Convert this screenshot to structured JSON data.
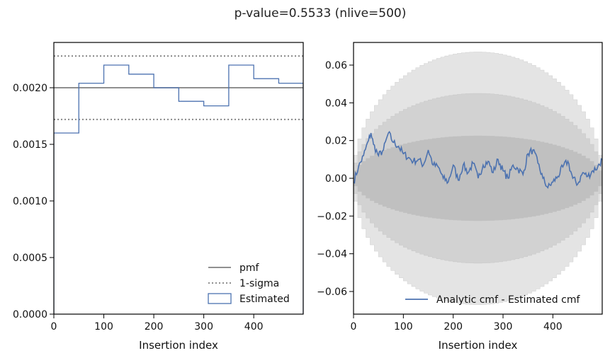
{
  "figure": {
    "suptitle": "p-value=0.5533 (nlive=500)"
  },
  "chart_data": [
    {
      "type": "step",
      "xlabel": "Insertion index",
      "ylabel": "",
      "xlim": [
        0,
        499
      ],
      "ylim": [
        0,
        0.0024
      ],
      "xticks": [
        0,
        100,
        200,
        300,
        400
      ],
      "yticks": [
        0,
        0.0005,
        0.001,
        0.0015,
        0.002
      ],
      "ytick_labels": [
        "0.0000",
        "0.0005",
        "0.0010",
        "0.0015",
        "0.0020"
      ],
      "legend_position": "lower right",
      "grid": false,
      "series": [
        {
          "name": "pmf",
          "kind": "hline",
          "y": 0.002,
          "style": "solid",
          "color": "#808080"
        },
        {
          "name": "1-sigma",
          "kind": "hlines",
          "y": [
            0.00172,
            0.00228
          ],
          "style": "dotted",
          "color": "#808080"
        },
        {
          "name": "Estimated",
          "kind": "hist",
          "color": "#4c72b0",
          "bin_edges": [
            0,
            50,
            100,
            150,
            200,
            250,
            300,
            350,
            400,
            450,
            499
          ],
          "values": [
            0.0016,
            0.00204,
            0.0022,
            0.00212,
            0.002,
            0.00188,
            0.00184,
            0.0022,
            0.00208,
            0.00204
          ]
        }
      ]
    },
    {
      "type": "line",
      "xlabel": "Insertion index",
      "ylabel": "",
      "xlim": [
        0,
        499
      ],
      "ylim": [
        -0.072,
        0.072
      ],
      "xticks": [
        0,
        100,
        200,
        300,
        400
      ],
      "yticks": [
        -0.06,
        -0.04,
        -0.02,
        0,
        0.02,
        0.04,
        0.06
      ],
      "ytick_labels": [
        "−0.06",
        "−0.04",
        "−0.02",
        "0.00",
        "0.02",
        "0.04",
        "0.06"
      ],
      "legend_position": "lower right",
      "grid": false,
      "bands": [
        {
          "sigma": 3,
          "max_half_width": 0.067,
          "color": "#e4e4e4"
        },
        {
          "sigma": 2,
          "max_half_width": 0.045,
          "color": "#d2d2d2"
        },
        {
          "sigma": 1,
          "max_half_width": 0.0225,
          "color": "#c0c0c0"
        }
      ],
      "series": [
        {
          "name": "Analytic cmf - Estimated cmf",
          "color": "#4c72b0",
          "x": [
            0,
            10,
            20,
            30,
            35,
            40,
            50,
            60,
            70,
            80,
            90,
            100,
            110,
            120,
            130,
            140,
            150,
            160,
            170,
            180,
            190,
            200,
            210,
            220,
            230,
            240,
            250,
            260,
            270,
            280,
            290,
            300,
            310,
            320,
            330,
            340,
            350,
            360,
            370,
            380,
            390,
            400,
            410,
            420,
            430,
            440,
            450,
            460,
            470,
            480,
            490,
            499
          ],
          "y": [
            -0.002,
            0.006,
            0.012,
            0.02,
            0.024,
            0.018,
            0.012,
            0.015,
            0.024,
            0.019,
            0.017,
            0.013,
            0.011,
            0.009,
            0.01,
            0.007,
            0.015,
            0.007,
            0.006,
            0.0,
            -0.002,
            0.007,
            -0.001,
            0.007,
            0.003,
            0.008,
            0.0,
            0.007,
            0.009,
            0.003,
            0.01,
            0.004,
            0.0,
            0.007,
            0.005,
            0.002,
            0.013,
            0.015,
            0.008,
            0.0,
            -0.005,
            -0.002,
            0.001,
            0.006,
            0.009,
            0.0,
            -0.003,
            0.003,
            0.001,
            0.004,
            0.006,
            0.01
          ]
        }
      ]
    }
  ]
}
